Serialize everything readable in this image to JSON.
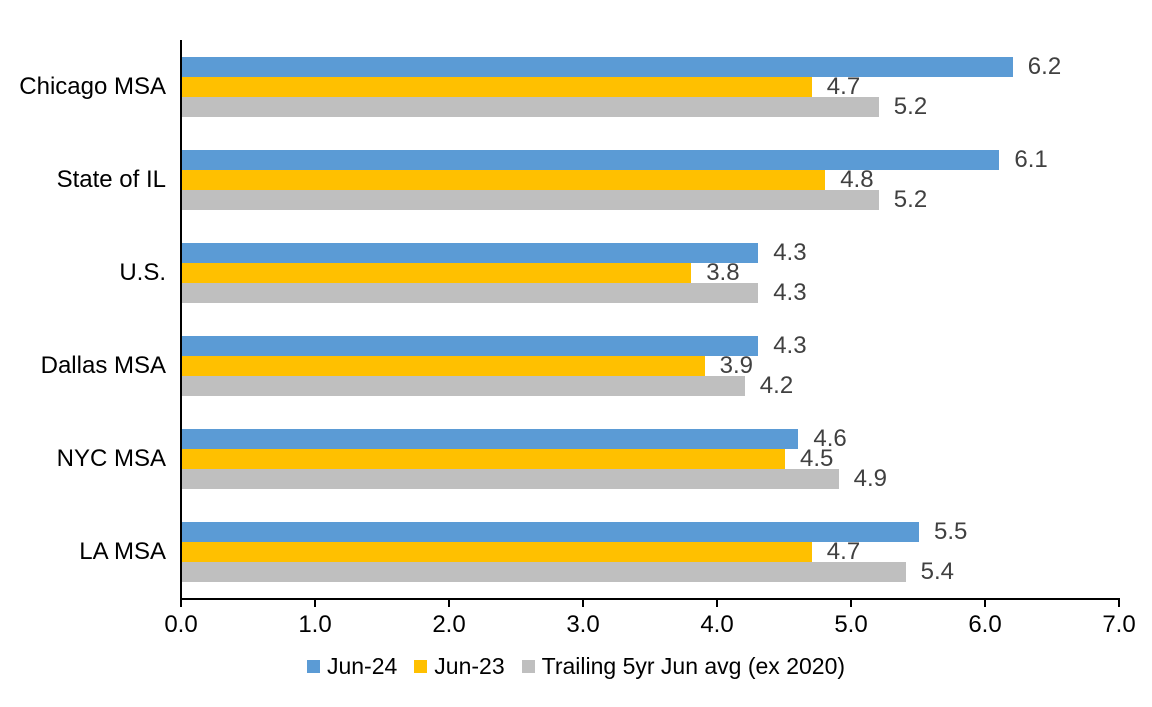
{
  "chart_data": {
    "type": "bar",
    "orientation": "horizontal",
    "title": "",
    "xlabel": "",
    "ylabel": "",
    "categories": [
      "Chicago MSA",
      "State of IL",
      "U.S.",
      "Dallas MSA",
      "NYC MSA",
      "LA MSA"
    ],
    "series": [
      {
        "name": "Jun-24",
        "color": "#5B9BD5",
        "values": [
          6.2,
          6.1,
          4.3,
          4.3,
          4.6,
          5.5
        ]
      },
      {
        "name": "Jun-23",
        "color": "#FFC000",
        "values": [
          4.7,
          4.8,
          3.8,
          3.9,
          4.5,
          4.7
        ]
      },
      {
        "name": "Trailing 5yr Jun avg (ex 2020)",
        "color": "#BFBFBF",
        "values": [
          5.2,
          5.2,
          4.3,
          4.2,
          4.9,
          5.4
        ]
      }
    ],
    "xlim": [
      0,
      7
    ],
    "x_ticks": [
      "0.0",
      "1.0",
      "2.0",
      "3.0",
      "4.0",
      "5.0",
      "6.0",
      "7.0"
    ],
    "grid": false,
    "legend_position": "bottom",
    "data_labels_shown": true,
    "colors": {
      "axis": "#000000",
      "data_label": "#404040",
      "category_label": "#000000",
      "background": "#FFFFFF"
    }
  }
}
